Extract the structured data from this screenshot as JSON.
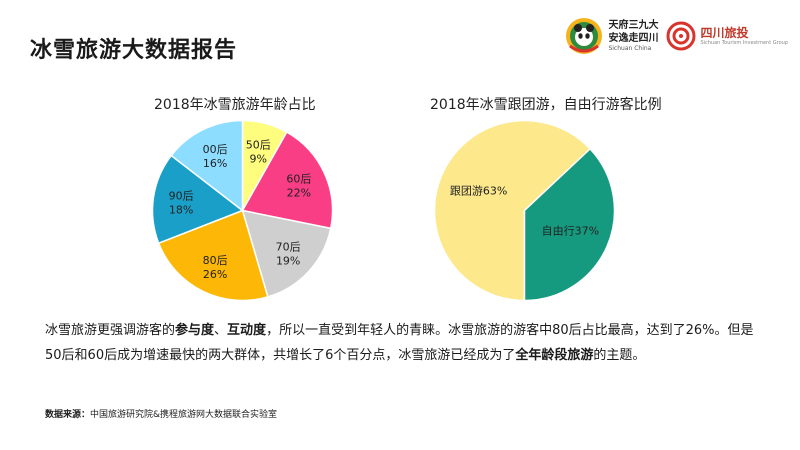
{
  "title": "冰雪旅游大数据报告",
  "logos": {
    "a": {
      "line1": "天府三九大",
      "line2": "安逸走四川",
      "sub": "Sichuan China"
    },
    "b": {
      "name": "四川旅投",
      "sub": "Sichuan Tourism Investment Group"
    }
  },
  "chart_data": [
    {
      "type": "pie",
      "title": "2018年冰雪旅游年龄占比",
      "categories": [
        "50后",
        "60后",
        "70后",
        "80后",
        "90后",
        "00后"
      ],
      "values": [
        9,
        22,
        19,
        26,
        18,
        16
      ],
      "value_labels": [
        "9%",
        "22%",
        "19%",
        "26%",
        "18%",
        "16%"
      ],
      "colors": [
        "#fffd7d",
        "#fa3e86",
        "#cfcfcf",
        "#fdb706",
        "#1aa0c8",
        "#8cddff"
      ]
    },
    {
      "type": "pie",
      "title": "2018年冰雪跟团游，自由行游客比例",
      "categories": [
        "跟团游",
        "自由行"
      ],
      "values": [
        63,
        37
      ],
      "slice_labels": [
        "跟团游63%",
        "自由行37%"
      ],
      "colors": [
        "#fde88c",
        "#159a80"
      ]
    }
  ],
  "paragraph": {
    "p1": "冰雪旅游更强调游客的",
    "b1": "参与度",
    "p2": "、",
    "b2": "互动度",
    "p3": "，所以一直受到年轻人的青睐。冰雪旅游的游客中80后占比最高，达到了26%。但是50后和60后成为增速最快的两大群体，共增长了6个百分点，冰雪旅游已经成为了",
    "b3": "全年龄段旅游",
    "p4": "的主题。"
  },
  "source": {
    "label": "数据来源：",
    "text": "中国旅游研究院&携程旅游网大数据联合实验室"
  }
}
